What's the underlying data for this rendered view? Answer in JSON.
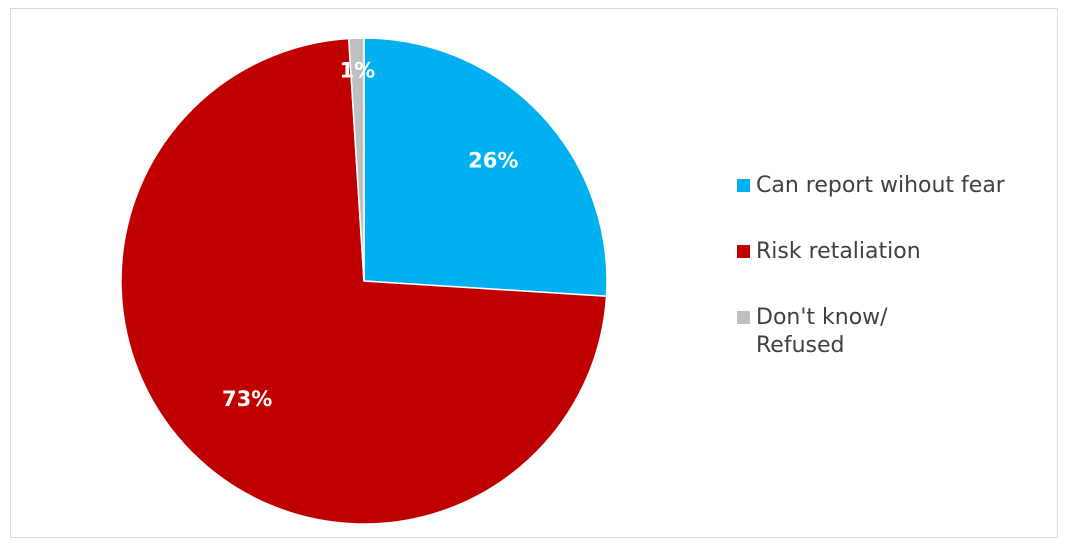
{
  "chart_data": {
    "type": "pie",
    "categories": [
      "Can report wihout fear",
      "Risk retaliation",
      "Don't know/\nRefused"
    ],
    "values": [
      26,
      73,
      1
    ],
    "data_labels": [
      "26%",
      "73%",
      "1%"
    ],
    "colors": [
      "#00b0f0",
      "#c00000",
      "#bfbfbf"
    ],
    "legend_position": "right",
    "start_angle": "12 o'clock, clockwise"
  }
}
